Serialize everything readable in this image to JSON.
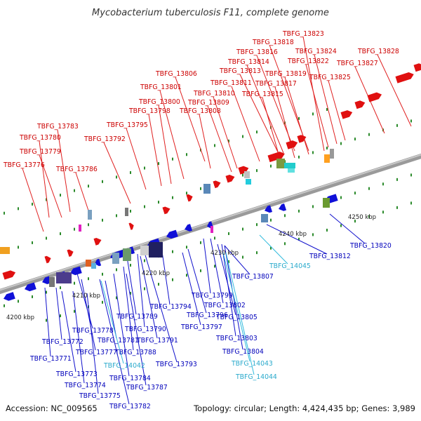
{
  "header": {
    "title": "Mycobacterium tuberculosis F11, complete genome"
  },
  "footer": {
    "accession": "Accession: NC_009565",
    "topology": "Topology: circular; Length: 4,424,435 bp; Genes: 3,989"
  },
  "colors": {
    "forward": "#e01010",
    "reverse": "#1010d8",
    "rna": "#33bbdd",
    "label_forward": "#cc0000",
    "label_reverse": "#0000bb",
    "label_rna": "#2aaacc",
    "backbone": "#888888"
  },
  "scale_ticks": [
    "4200 kbp",
    "4210 kbp",
    "4220 kbp",
    "4230 kbp",
    "4240 kbp",
    "4250 kbp"
  ],
  "forward_labels": [
    "TBFG_13823",
    "TBFG_13818",
    "TBFG_13824",
    "TBFG_13828",
    "TBFG_13816",
    "TBFG_13822",
    "TBFG_13814",
    "TBFG_13827",
    "TBFG_13813",
    "TBFG_13819",
    "TBFG_13825",
    "TBFG_13806",
    "TBFG_13811",
    "TBFG_13817",
    "TBFG_13801",
    "TBFG_13810",
    "TBFG_13815",
    "TBFG_13800",
    "TBFG_13809",
    "TBFG_13798",
    "TBFG_13808",
    "TBFG_13795",
    "TBFG_13783",
    "TBFG_13780",
    "TBFG_13792",
    "TBFG_13779",
    "TBFG_13776",
    "TBFG_13786"
  ],
  "reverse_labels": [
    "TBFG_13820",
    "TBFG_13812",
    "TBFG_13807",
    "TBFG_13799",
    "TBFG_13802",
    "TBFG_13794",
    "TBFG_13796",
    "TBFG_13805",
    "TBFG_13789",
    "TBFG_13797",
    "TBFG_13790",
    "TBFG_13803",
    "TBFG_13778",
    "TBFG_13791",
    "TBFG_13772",
    "TBFG_13781",
    "TBFG_13788",
    "TBFG_13804",
    "TBFG_13777",
    "TBFG_13771",
    "TBFG_13793",
    "TBFG_13773",
    "TBFG_13784",
    "TBFG_13774",
    "TBFG_13787",
    "TBFG_13775",
    "TBFG_13782"
  ],
  "rna_labels": [
    "TBFG_14045",
    "TBFG_14042",
    "TBFG_14043",
    "TBFG_14044"
  ]
}
